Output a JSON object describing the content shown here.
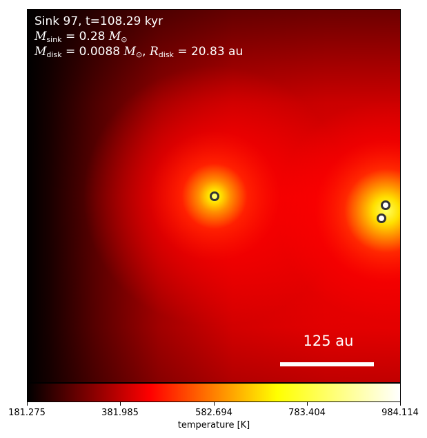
{
  "annotation": {
    "line1": "Sink 97, t=108.29 kyr",
    "m_sink_symbol": "M",
    "m_sink_sub": "sink",
    "m_sink_value": " = 0.28 ",
    "m_sun_symbol": "M",
    "sun_sub": "⊙",
    "m_disk_symbol": "M",
    "m_disk_sub": "disk",
    "m_disk_value": " = 0.0088 ",
    "separator": ", ",
    "r_disk_symbol": "R",
    "r_disk_sub": "disk",
    "r_disk_value": " = 20.83 au"
  },
  "scale_bar": {
    "label": "125 au"
  },
  "colorbar": {
    "label": "temperature [K]",
    "ticks": [
      "181.275",
      "381.985",
      "582.694",
      "783.404",
      "984.114"
    ],
    "range": [
      181.275,
      984.114
    ],
    "colormap": "hot",
    "stops": [
      "#000000",
      "#ff0000",
      "#ffff00",
      "#ffffff"
    ]
  },
  "sinks": [
    {
      "name": "sink-primary",
      "style": "primary"
    },
    {
      "name": "sink-right-upper",
      "style": "other"
    },
    {
      "name": "sink-right-lower",
      "style": "other"
    }
  ],
  "colors": {
    "background": "#ffffff",
    "text_on_plot": "#ffffff",
    "sink_outline": "#333333"
  }
}
